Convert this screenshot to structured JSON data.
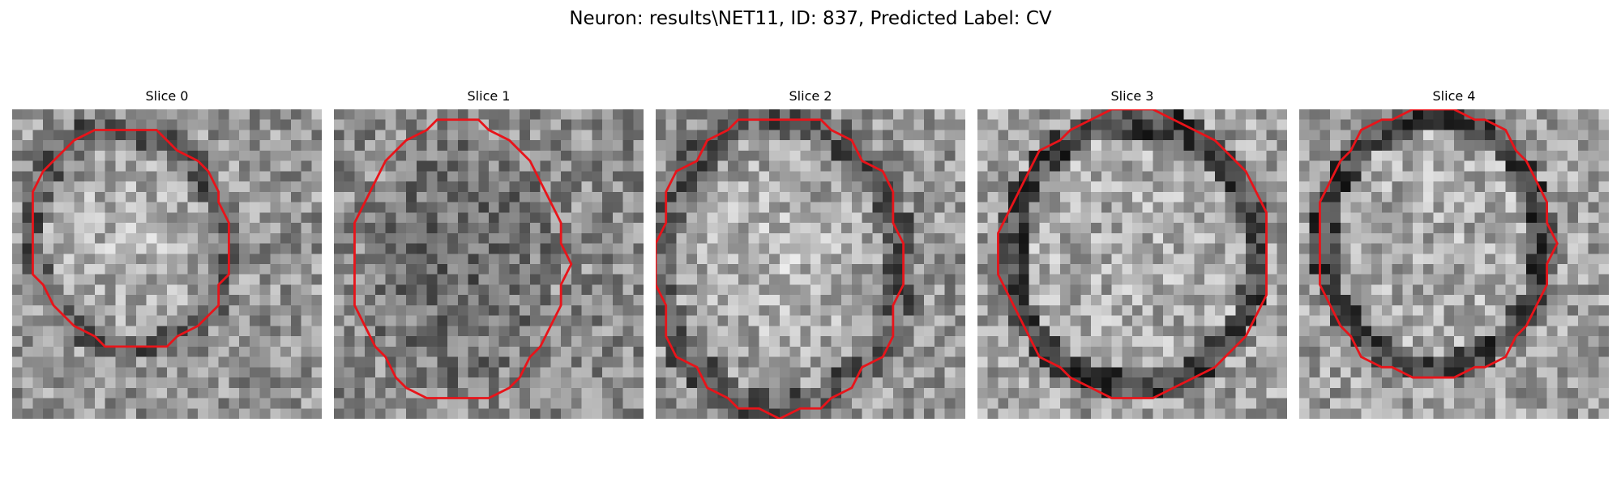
{
  "figure": {
    "title": "Neuron: results\\NET11, ID: 837, Predicted Label: CV",
    "panels": [
      {
        "label": "Slice 0",
        "seed": 11,
        "shape": "bright"
      },
      {
        "label": "Slice 1",
        "seed": 23,
        "shape": "dark"
      },
      {
        "label": "Slice 2",
        "seed": 37,
        "shape": "bright"
      },
      {
        "label": "Slice 3",
        "seed": 41,
        "shape": "ring"
      },
      {
        "label": "Slice 4",
        "seed": 53,
        "shape": "ring"
      }
    ],
    "colors": {
      "contour": "#e8141a"
    }
  }
}
